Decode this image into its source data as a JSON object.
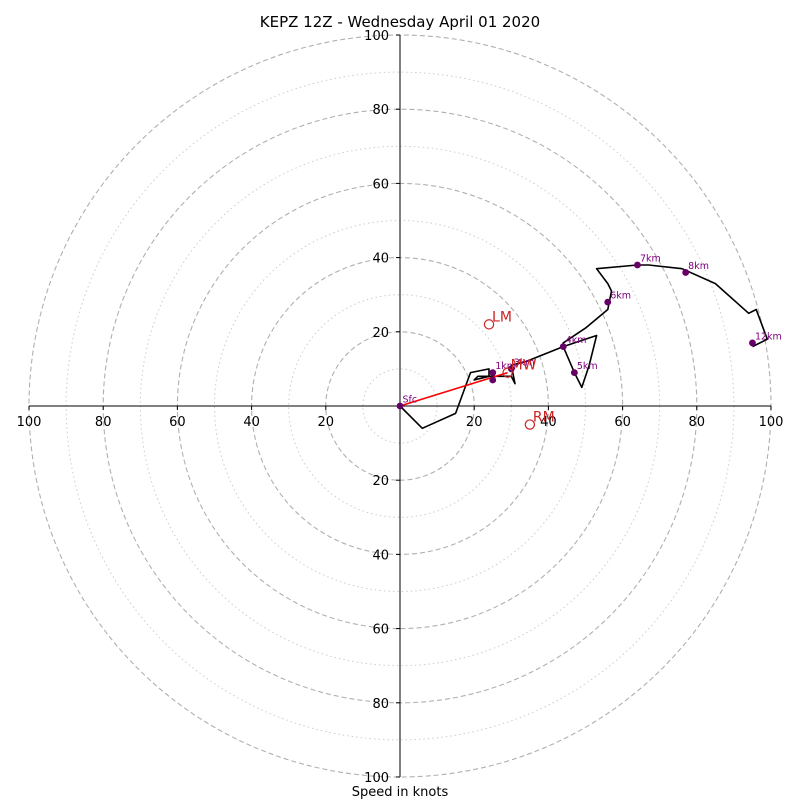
{
  "chart_data": {
    "type": "scatter",
    "subtype": "hodograph",
    "title": "KEPZ 12Z - Wednesday April 01 2020",
    "xlabel": "Speed in knots",
    "ylabel": "",
    "xlim": [
      -100,
      100
    ],
    "ylim": [
      -100,
      100
    ],
    "rings_major": [
      20,
      40,
      60,
      80,
      100
    ],
    "rings_minor": [
      10,
      30,
      50,
      70,
      90
    ],
    "x_tick_labels": [
      "100",
      "80",
      "60",
      "40",
      "20",
      "20",
      "40",
      "60",
      "80",
      "100"
    ],
    "y_tick_labels": [
      "100",
      "80",
      "60",
      "40",
      "20",
      "20",
      "40",
      "60",
      "80",
      "100"
    ],
    "hodograph_trace": [
      [
        0,
        0
      ],
      [
        6,
        -6
      ],
      [
        15,
        -2
      ],
      [
        19,
        9
      ],
      [
        24,
        10
      ],
      [
        24,
        8
      ],
      [
        20,
        7
      ],
      [
        21,
        8
      ],
      [
        26,
        8
      ],
      [
        30,
        8
      ],
      [
        31,
        6
      ],
      [
        30,
        11
      ],
      [
        34,
        12
      ],
      [
        44,
        16
      ],
      [
        53,
        19
      ],
      [
        51,
        11
      ],
      [
        49,
        5
      ],
      [
        47,
        9
      ],
      [
        44,
        16
      ],
      [
        44,
        17
      ],
      [
        50,
        21
      ],
      [
        56,
        26
      ],
      [
        57,
        31
      ],
      [
        56,
        33
      ],
      [
        53,
        37
      ],
      [
        64,
        38
      ],
      [
        67,
        38
      ],
      [
        76,
        37
      ],
      [
        85,
        33
      ],
      [
        94,
        25
      ],
      [
        96,
        26
      ],
      [
        99,
        18
      ],
      [
        95,
        16
      ]
    ],
    "height_markers": [
      {
        "label": "Sfc",
        "x": 0,
        "y": 0
      },
      {
        "label": "1km",
        "x": 25,
        "y": 9
      },
      {
        "label": "3km",
        "x": 30,
        "y": 10
      },
      {
        "label": "",
        "x": 25,
        "y": 7
      },
      {
        "label": "4km",
        "x": 44,
        "y": 16
      },
      {
        "label": "5km",
        "x": 47,
        "y": 9
      },
      {
        "label": "6km",
        "x": 56,
        "y": 28
      },
      {
        "label": "7km",
        "x": 64,
        "y": 38
      },
      {
        "label": "8km",
        "x": 77,
        "y": 36
      },
      {
        "label": "12km",
        "x": 95,
        "y": 17
      }
    ],
    "motion_markers": [
      {
        "label": "LM",
        "x": 24,
        "y": 22
      },
      {
        "label": "RM",
        "x": 35,
        "y": -5
      },
      {
        "label": "MW",
        "x": 29,
        "y": 9
      }
    ],
    "mean_wind_vector": {
      "from": [
        0,
        0
      ],
      "to": [
        29,
        9
      ]
    },
    "colors": {
      "trace": "#000000",
      "height_points": "#660066",
      "height_labels": "#800080",
      "motion": "#cc2222",
      "vector": "#ff0000",
      "grid": "#b0b0b0",
      "axis": "#000000"
    },
    "grid": true
  }
}
